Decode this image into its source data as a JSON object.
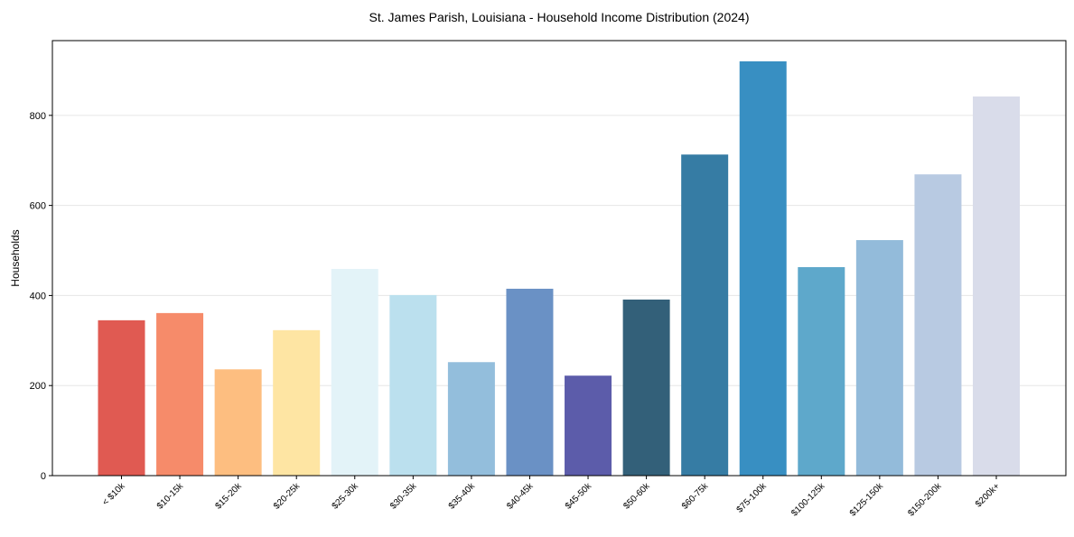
{
  "chart_data": {
    "type": "bar",
    "title": "St. James Parish, Louisiana - Household Income Distribution (2024)",
    "xlabel": "",
    "ylabel": "Households",
    "ylim": [
      0,
      966
    ],
    "yticks": [
      0,
      200,
      400,
      600,
      800
    ],
    "grid": true,
    "categories": [
      "< $10k",
      "$10-15k",
      "$15-20k",
      "$20-25k",
      "$25-30k",
      "$30-35k",
      "$35-40k",
      "$40-45k",
      "$45-50k",
      "$50-60k",
      "$60-75k",
      "$75-100k",
      "$100-125k",
      "$125-150k",
      "$150-200k",
      "$200k+"
    ],
    "values": [
      345,
      361,
      236,
      323,
      459,
      401,
      252,
      415,
      222,
      391,
      713,
      920,
      463,
      523,
      669,
      842
    ],
    "colors": [
      "#e05a52",
      "#f68b6a",
      "#fdbe80",
      "#fee5a3",
      "#e3f3f8",
      "#bbe0ee",
      "#93bedc",
      "#6a91c5",
      "#5c5caa",
      "#336079",
      "#367ca4",
      "#388fc2",
      "#5ea8cb",
      "#93bbda",
      "#b8cae2",
      "#d9dcea"
    ]
  }
}
